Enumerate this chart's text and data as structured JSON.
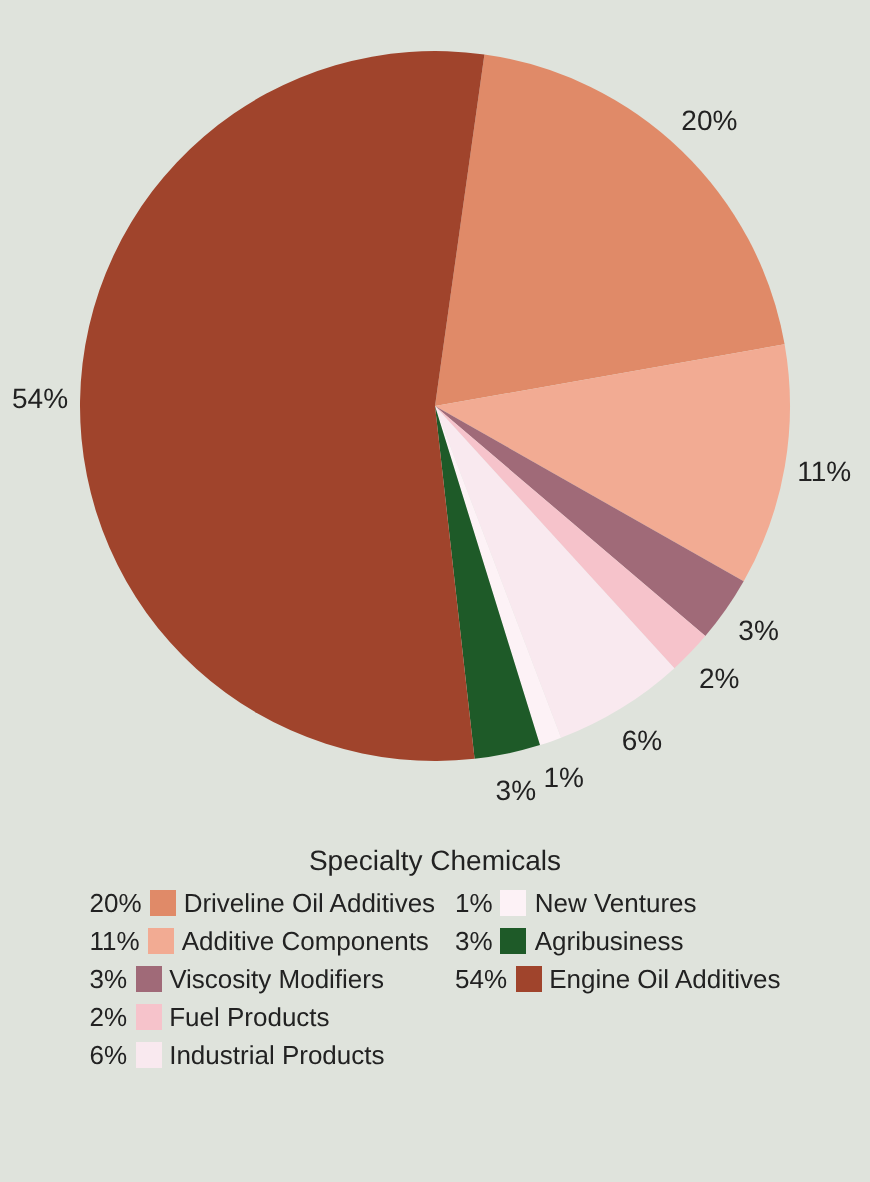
{
  "chart_data": {
    "type": "pie",
    "legend_title": "Specialty Chemicals",
    "legend": "bottom",
    "categories": [
      "Driveline Oil Additives",
      "Additive Components",
      "Viscosity Modifiers",
      "Fuel Products",
      "Industrial Products",
      "New Ventures",
      "Agribusiness",
      "Engine Oil Additives"
    ],
    "values": [
      20,
      11,
      3,
      2,
      6,
      1,
      3,
      54
    ],
    "value_labels": [
      "20%",
      "11%",
      "3%",
      "2%",
      "6%",
      "1%",
      "3%",
      "54%"
    ],
    "colors": [
      "#e08a68",
      "#f2ab93",
      "#a06a78",
      "#f6c3cb",
      "#f9e9ef",
      "#fdf2f6",
      "#1e5a28",
      "#a0442c"
    ]
  }
}
